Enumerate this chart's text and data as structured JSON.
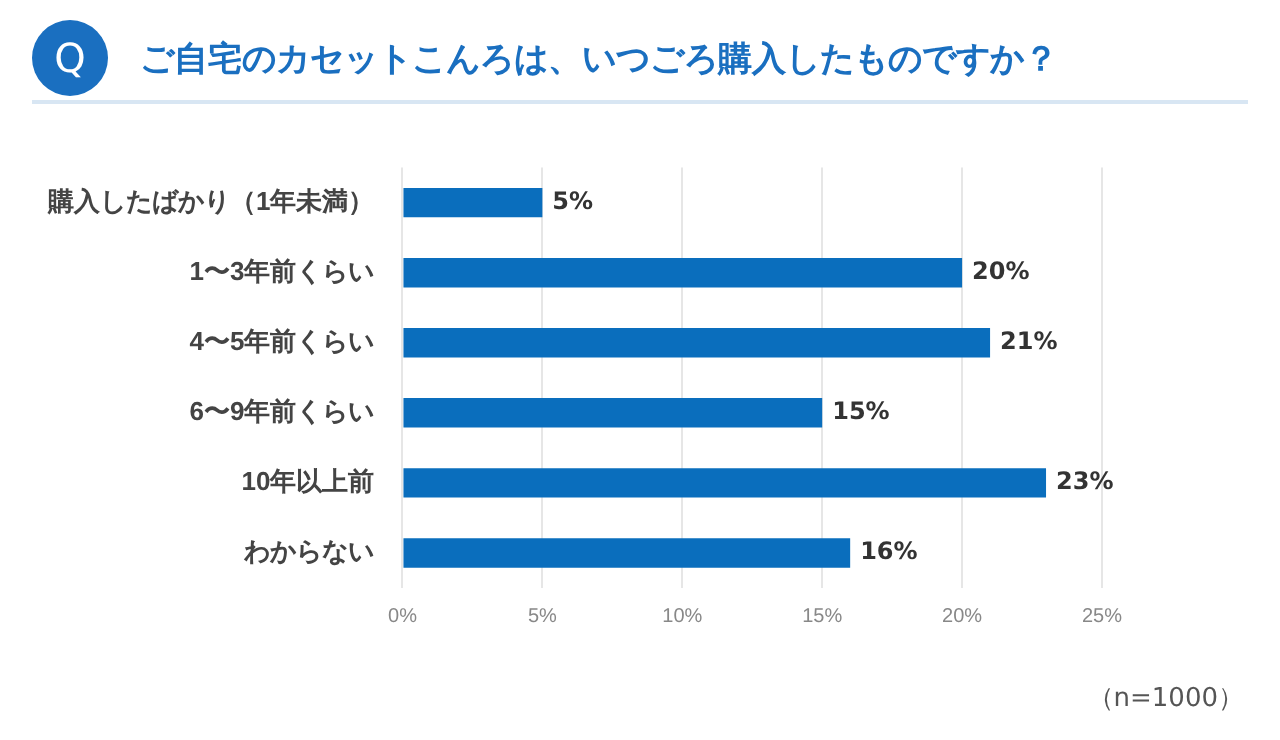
{
  "chart_data": {
    "type": "bar",
    "orientation": "horizontal",
    "title": "ご自宅のカセットこんろは、いつごろ購入したものですか？",
    "categories": [
      "購入したばかり（1年未満）",
      "1〜3年前くらい",
      "4〜5年前くらい",
      "6〜9年前くらい",
      "10年以上前",
      "わからない"
    ],
    "values": [
      5,
      20,
      21,
      15,
      23,
      16
    ],
    "color": "#0a6ebd",
    "xlim": [
      0,
      25
    ],
    "xticks": [
      {
        "value": 0,
        "label": "0%"
      },
      {
        "value": 5,
        "label": "5%"
      },
      {
        "value": 10,
        "label": "10%"
      },
      {
        "value": 15,
        "label": "15%"
      },
      {
        "value": 20,
        "label": "20%"
      },
      {
        "value": 25,
        "label": "25%"
      }
    ],
    "value_labels": [
      "5%",
      "20%",
      "21%",
      "15%",
      "23%",
      "16%"
    ],
    "grid": "x",
    "legend": false,
    "annotations": [
      "Q",
      "（n=1000）"
    ]
  }
}
